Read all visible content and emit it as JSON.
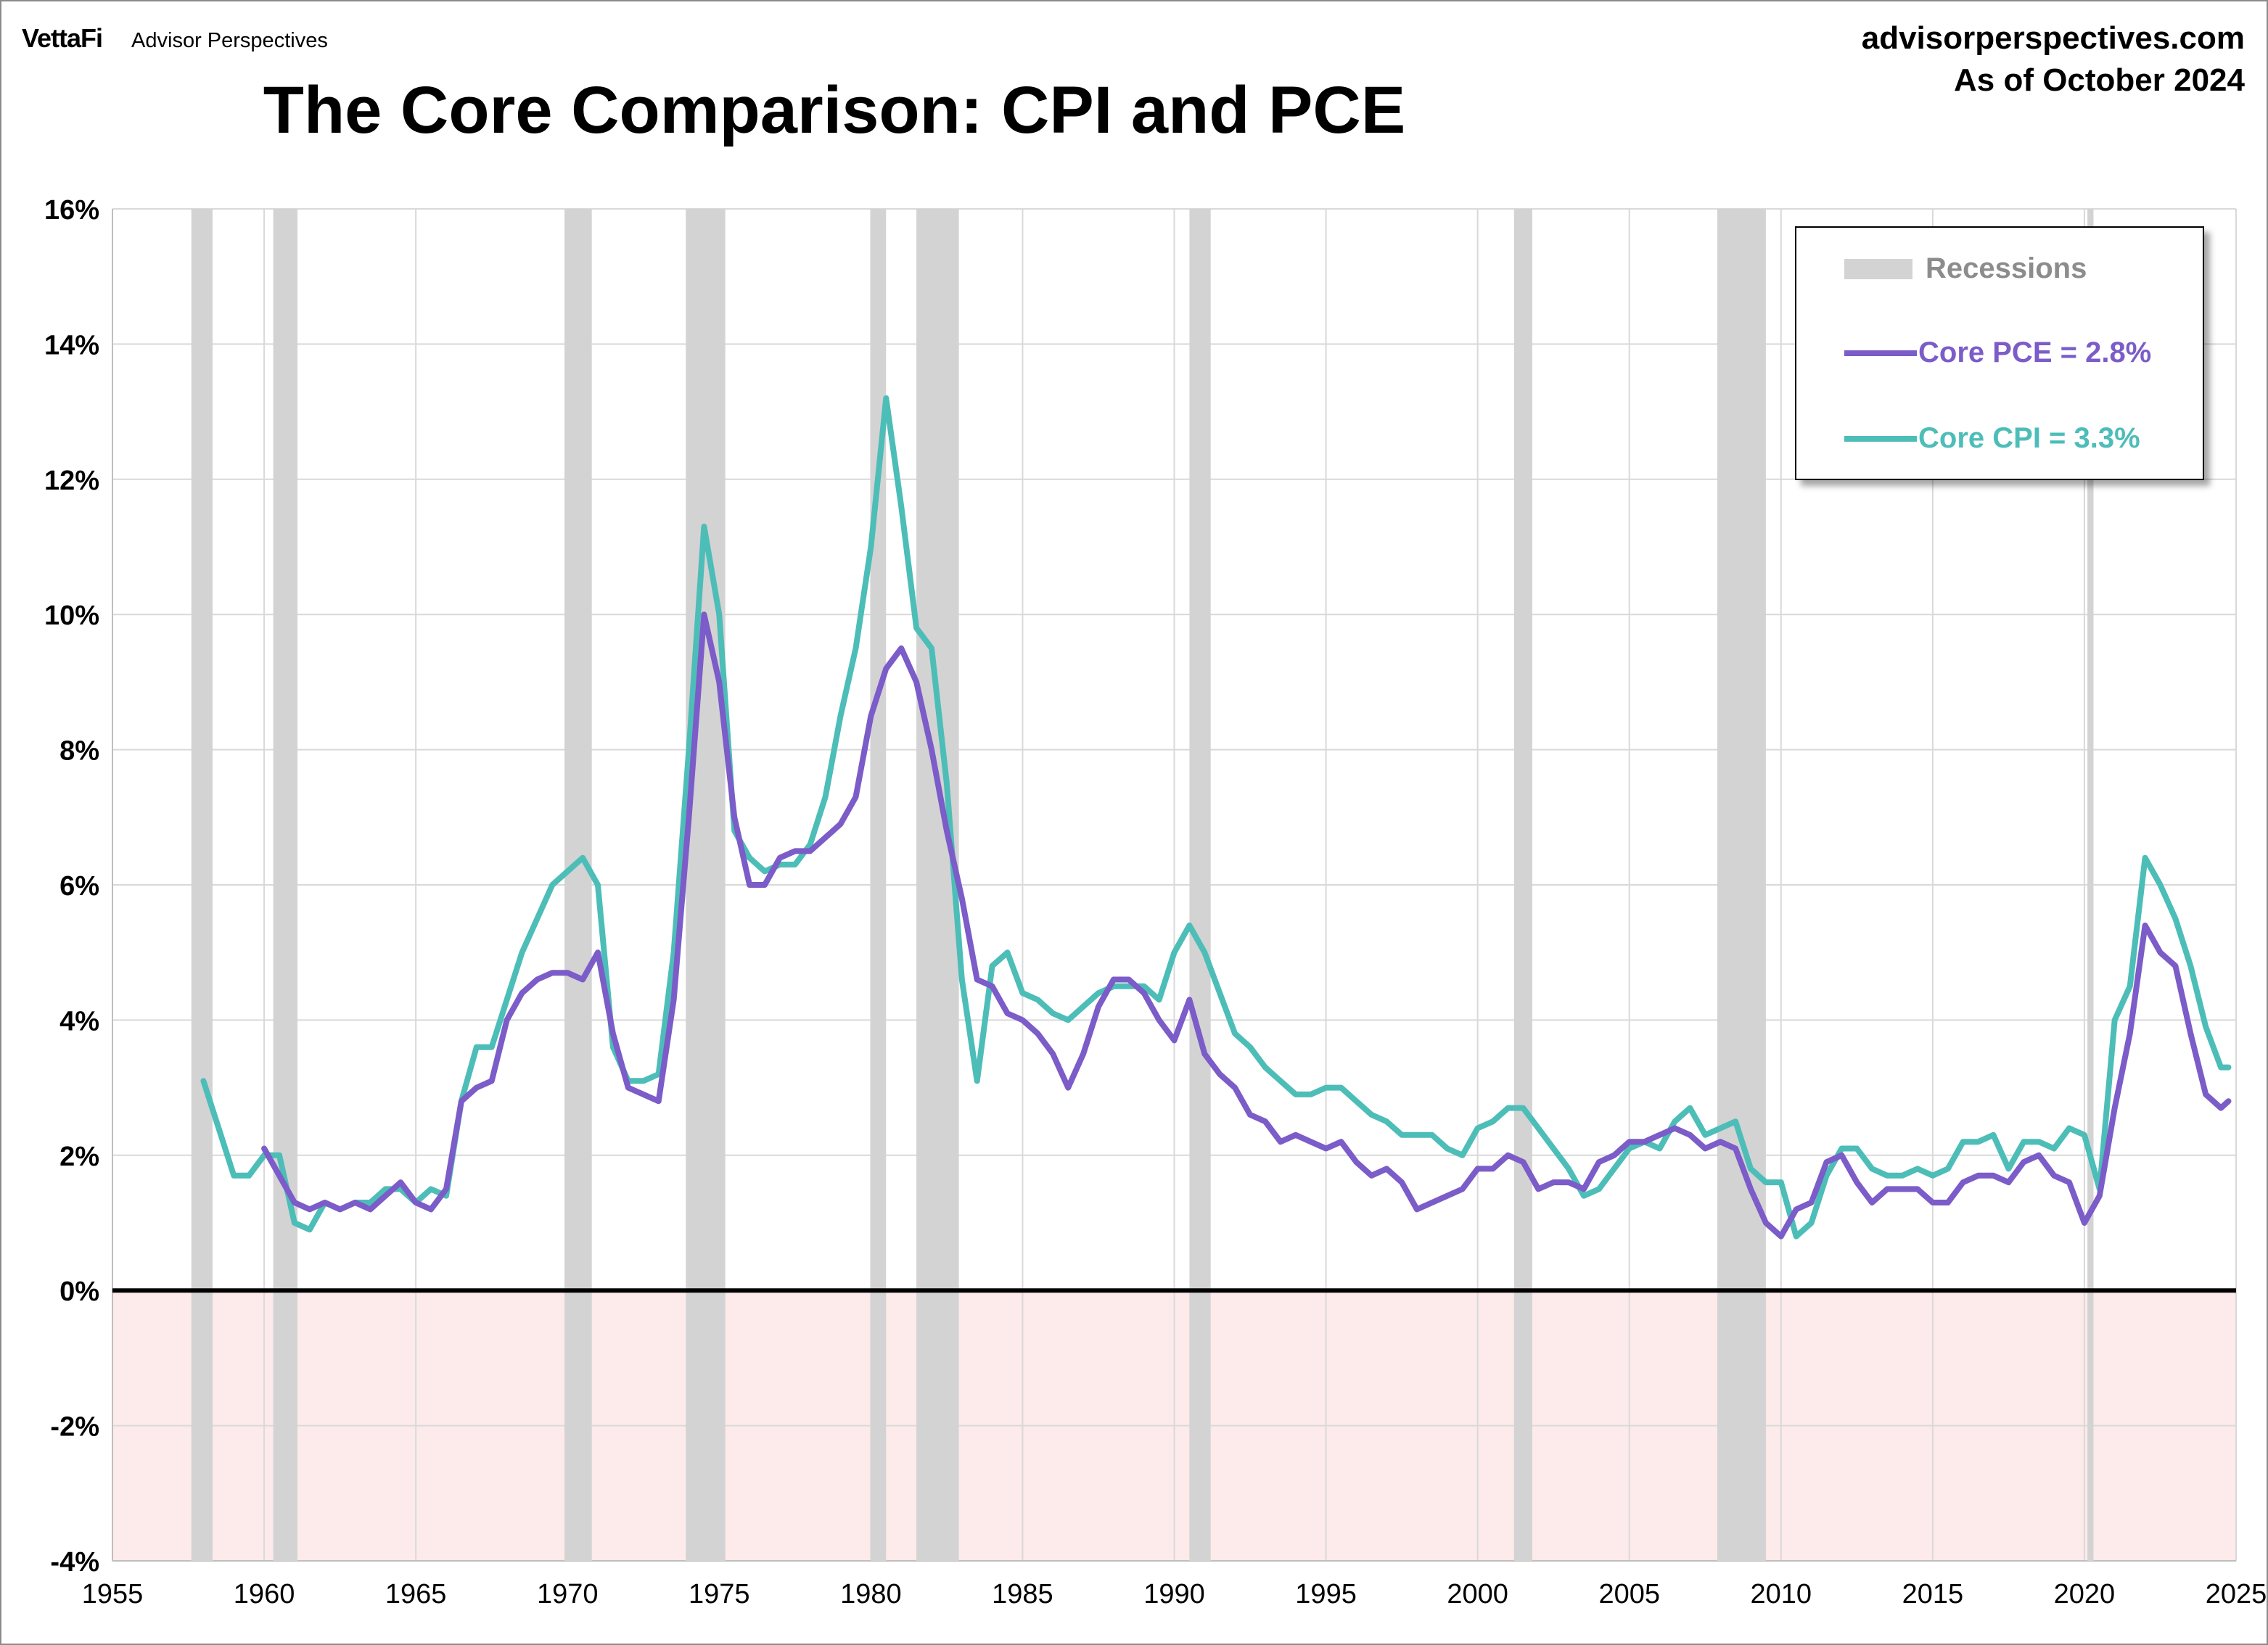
{
  "header": {
    "brand_logo": "VettaFi",
    "brand_sub": "Advisor Perspectives",
    "site": "advisorperspectives.com",
    "as_of": "As of October 2024",
    "title": "The Core Comparison: CPI and PCE"
  },
  "legend": {
    "recessions": "Recessions",
    "pce": "Core PCE = 2.8%",
    "cpi": "Core CPI =  3.3%"
  },
  "colors": {
    "pce": "#7b5cc8",
    "cpi": "#4dbdb8",
    "recession": "#d3d3d3",
    "negative_zone": "#fdeaea",
    "grid": "#d9d9d9",
    "zero_line": "#000000"
  },
  "chart_data": {
    "type": "line",
    "title": "The Core Comparison: CPI and PCE",
    "xlim": [
      1955,
      2025
    ],
    "ylim": [
      -4,
      16
    ],
    "x_ticks": [
      "1955",
      "1960",
      "1965",
      "1970",
      "1975",
      "1980",
      "1985",
      "1990",
      "1995",
      "2000",
      "2005",
      "2010",
      "2015",
      "2020",
      "2025"
    ],
    "y_ticks": [
      "16%",
      "14%",
      "12%",
      "10%",
      "8%",
      "6%",
      "4%",
      "2%",
      "0%",
      "-2%",
      "-4%"
    ],
    "grid": "vertical-and-horizontal",
    "legend_placement": "top-right",
    "recessions": [
      [
        1957.6,
        1958.3
      ],
      [
        1960.3,
        1961.1
      ],
      [
        1969.9,
        1970.8
      ],
      [
        1973.9,
        1975.2
      ],
      [
        1980.0,
        1980.5
      ],
      [
        1981.5,
        1982.9
      ],
      [
        1990.5,
        1991.2
      ],
      [
        2001.2,
        2001.8
      ],
      [
        2007.9,
        2009.5
      ],
      [
        2020.1,
        2020.3
      ]
    ],
    "series": [
      {
        "name": "Core PCE",
        "x": [
          1960.0,
          1960.5,
          1961.0,
          1961.5,
          1962.0,
          1962.5,
          1963.0,
          1963.5,
          1964.0,
          1964.5,
          1965.0,
          1965.5,
          1966.0,
          1966.5,
          1967.0,
          1967.5,
          1968.0,
          1968.5,
          1969.0,
          1969.5,
          1970.0,
          1970.5,
          1971.0,
          1971.5,
          1972.0,
          1972.5,
          1973.0,
          1973.5,
          1974.0,
          1974.5,
          1975.0,
          1975.5,
          1976.0,
          1976.5,
          1977.0,
          1977.5,
          1978.0,
          1978.5,
          1979.0,
          1979.5,
          1980.0,
          1980.5,
          1981.0,
          1981.5,
          1982.0,
          1982.5,
          1983.0,
          1983.5,
          1984.0,
          1984.5,
          1985.0,
          1985.5,
          1986.0,
          1986.5,
          1987.0,
          1987.5,
          1988.0,
          1988.5,
          1989.0,
          1989.5,
          1990.0,
          1990.5,
          1991.0,
          1991.5,
          1992.0,
          1992.5,
          1993.0,
          1993.5,
          1994.0,
          1994.5,
          1995.0,
          1995.5,
          1996.0,
          1996.5,
          1997.0,
          1997.5,
          1998.0,
          1998.5,
          1999.0,
          1999.5,
          2000.0,
          2000.5,
          2001.0,
          2001.5,
          2002.0,
          2002.5,
          2003.0,
          2003.5,
          2004.0,
          2004.5,
          2005.0,
          2005.5,
          2006.0,
          2006.5,
          2007.0,
          2007.5,
          2008.0,
          2008.5,
          2009.0,
          2009.5,
          2010.0,
          2010.5,
          2011.0,
          2011.5,
          2012.0,
          2012.5,
          2013.0,
          2013.5,
          2014.0,
          2014.5,
          2015.0,
          2015.5,
          2016.0,
          2016.5,
          2017.0,
          2017.5,
          2018.0,
          2018.5,
          2019.0,
          2019.5,
          2020.0,
          2020.5,
          2021.0,
          2021.5,
          2022.0,
          2022.5,
          2023.0,
          2023.5,
          2024.0,
          2024.5,
          2024.75
        ],
        "values": [
          2.1,
          1.7,
          1.3,
          1.2,
          1.3,
          1.2,
          1.3,
          1.2,
          1.4,
          1.6,
          1.3,
          1.2,
          1.5,
          2.8,
          3.0,
          3.1,
          4.0,
          4.4,
          4.6,
          4.7,
          4.7,
          4.6,
          5.0,
          3.8,
          3.0,
          2.9,
          2.8,
          4.3,
          7.0,
          10.0,
          9.0,
          7.0,
          6.0,
          6.0,
          6.4,
          6.5,
          6.5,
          6.7,
          6.9,
          7.3,
          8.5,
          9.2,
          9.5,
          9.0,
          8.0,
          6.8,
          5.8,
          4.6,
          4.5,
          4.1,
          4.0,
          3.8,
          3.5,
          3.0,
          3.5,
          4.2,
          4.6,
          4.6,
          4.4,
          4.0,
          3.7,
          4.3,
          3.5,
          3.2,
          3.0,
          2.6,
          2.5,
          2.2,
          2.3,
          2.2,
          2.1,
          2.2,
          1.9,
          1.7,
          1.8,
          1.6,
          1.2,
          1.3,
          1.4,
          1.5,
          1.8,
          1.8,
          2.0,
          1.9,
          1.5,
          1.6,
          1.6,
          1.5,
          1.9,
          2.0,
          2.2,
          2.2,
          2.3,
          2.4,
          2.3,
          2.1,
          2.2,
          2.1,
          1.5,
          1.0,
          0.8,
          1.2,
          1.3,
          1.9,
          2.0,
          1.6,
          1.3,
          1.5,
          1.5,
          1.5,
          1.3,
          1.3,
          1.6,
          1.7,
          1.7,
          1.6,
          1.9,
          2.0,
          1.7,
          1.6,
          1.0,
          1.4,
          2.7,
          3.8,
          5.4,
          5.0,
          4.8,
          3.8,
          2.9,
          2.7,
          2.8
        ]
      },
      {
        "name": "Core CPI",
        "x": [
          1958.0,
          1958.5,
          1959.0,
          1959.5,
          1960.0,
          1960.5,
          1961.0,
          1961.5,
          1962.0,
          1962.5,
          1963.0,
          1963.5,
          1964.0,
          1964.5,
          1965.0,
          1965.5,
          1966.0,
          1966.5,
          1967.0,
          1967.5,
          1968.0,
          1968.5,
          1969.0,
          1969.5,
          1970.0,
          1970.5,
          1971.0,
          1971.5,
          1972.0,
          1972.5,
          1973.0,
          1973.5,
          1974.0,
          1974.5,
          1975.0,
          1975.5,
          1976.0,
          1976.5,
          1977.0,
          1977.5,
          1978.0,
          1978.5,
          1979.0,
          1979.5,
          1980.0,
          1980.5,
          1981.0,
          1981.5,
          1982.0,
          1982.5,
          1983.0,
          1983.5,
          1984.0,
          1984.5,
          1985.0,
          1985.5,
          1986.0,
          1986.5,
          1987.0,
          1987.5,
          1988.0,
          1988.5,
          1989.0,
          1989.5,
          1990.0,
          1990.5,
          1991.0,
          1991.5,
          1992.0,
          1992.5,
          1993.0,
          1993.5,
          1994.0,
          1994.5,
          1995.0,
          1995.5,
          1996.0,
          1996.5,
          1997.0,
          1997.5,
          1998.0,
          1998.5,
          1999.0,
          1999.5,
          2000.0,
          2000.5,
          2001.0,
          2001.5,
          2002.0,
          2002.5,
          2003.0,
          2003.5,
          2004.0,
          2004.5,
          2005.0,
          2005.5,
          2006.0,
          2006.5,
          2007.0,
          2007.5,
          2008.0,
          2008.5,
          2009.0,
          2009.5,
          2010.0,
          2010.5,
          2011.0,
          2011.5,
          2012.0,
          2012.5,
          2013.0,
          2013.5,
          2014.0,
          2014.5,
          2015.0,
          2015.5,
          2016.0,
          2016.5,
          2017.0,
          2017.5,
          2018.0,
          2018.5,
          2019.0,
          2019.5,
          2020.0,
          2020.5,
          2021.0,
          2021.5,
          2022.0,
          2022.5,
          2023.0,
          2023.5,
          2024.0,
          2024.5,
          2024.75
        ],
        "values": [
          3.1,
          2.4,
          1.7,
          1.7,
          2.0,
          2.0,
          1.0,
          0.9,
          1.3,
          1.2,
          1.3,
          1.3,
          1.5,
          1.5,
          1.3,
          1.5,
          1.4,
          2.8,
          3.6,
          3.6,
          4.3,
          5.0,
          5.5,
          6.0,
          6.2,
          6.4,
          6.0,
          3.6,
          3.1,
          3.1,
          3.2,
          5.0,
          8.0,
          11.3,
          10.0,
          6.8,
          6.4,
          6.2,
          6.3,
          6.3,
          6.6,
          7.3,
          8.5,
          9.5,
          11.0,
          13.2,
          11.6,
          9.8,
          9.5,
          7.5,
          4.6,
          3.1,
          4.8,
          5.0,
          4.4,
          4.3,
          4.1,
          4.0,
          4.2,
          4.4,
          4.5,
          4.5,
          4.5,
          4.3,
          5.0,
          5.4,
          5.0,
          4.4,
          3.8,
          3.6,
          3.3,
          3.1,
          2.9,
          2.9,
          3.0,
          3.0,
          2.8,
          2.6,
          2.5,
          2.3,
          2.3,
          2.3,
          2.1,
          2.0,
          2.4,
          2.5,
          2.7,
          2.7,
          2.4,
          2.1,
          1.8,
          1.4,
          1.5,
          1.8,
          2.1,
          2.2,
          2.1,
          2.5,
          2.7,
          2.3,
          2.4,
          2.5,
          1.8,
          1.6,
          1.6,
          0.8,
          1.0,
          1.7,
          2.1,
          2.1,
          1.8,
          1.7,
          1.7,
          1.8,
          1.7,
          1.8,
          2.2,
          2.2,
          2.3,
          1.8,
          2.2,
          2.2,
          2.1,
          2.4,
          2.3,
          1.5,
          4.0,
          4.5,
          6.4,
          6.0,
          5.5,
          4.8,
          3.9,
          3.3,
          3.3
        ]
      }
    ]
  }
}
